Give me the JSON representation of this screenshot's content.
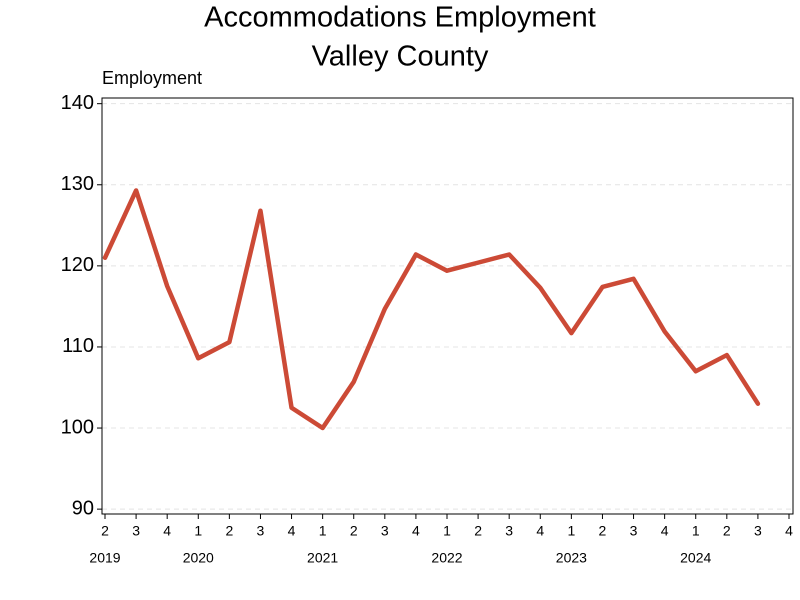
{
  "chart_data": {
    "type": "line",
    "title": "Accommodations Employment",
    "subtitle": "Valley County",
    "y_label": "Employment",
    "categories": [
      "2",
      "3",
      "4",
      "1",
      "2",
      "3",
      "4",
      "1",
      "2",
      "3",
      "4",
      "1",
      "2",
      "3",
      "4",
      "1",
      "2",
      "3",
      "4",
      "1",
      "2",
      "3",
      "4"
    ],
    "year_labels": [
      "2019",
      null,
      null,
      "2020",
      null,
      null,
      null,
      "2021",
      null,
      null,
      null,
      "2022",
      null,
      null,
      null,
      "2023",
      null,
      null,
      null,
      "2024",
      null,
      null,
      null
    ],
    "series": [
      {
        "name": "Employment",
        "color": "#cc4a36",
        "values": [
          121.0,
          129.3,
          117.5,
          108.6,
          110.6,
          126.8,
          102.5,
          100.0,
          105.7,
          114.7,
          121.4,
          119.4,
          120.4,
          121.4,
          117.3,
          111.7,
          117.4,
          118.4,
          111.9,
          107.0,
          109.0,
          103.0,
          null
        ]
      }
    ],
    "ylim": [
      89.4,
      140.7
    ],
    "yticks": [
      90,
      100,
      110,
      120,
      130,
      140
    ],
    "grid": true
  }
}
